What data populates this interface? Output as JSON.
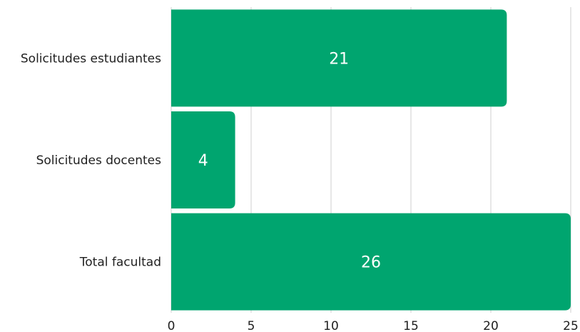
{
  "chart_data": {
    "type": "bar",
    "orientation": "horizontal",
    "categories": [
      "Solicitudes estudiantes",
      "Solicitudes docentes",
      "Total facultad"
    ],
    "values": [
      21,
      4,
      26
    ],
    "data_labels": [
      "21",
      "4",
      "26"
    ],
    "xlim": [
      0,
      25
    ],
    "x_ticks": [
      0,
      5,
      10,
      15,
      20,
      25
    ],
    "x_tick_labels": [
      "0",
      "5",
      "10",
      "15",
      "20",
      "25"
    ],
    "title": "",
    "xlabel": "",
    "ylabel": "",
    "grid": "vertical",
    "legend": "none",
    "colors": {
      "bar": "#00a56f",
      "grid": "#cfcfcf",
      "text": "#1f1f1f",
      "bar_label": "#ffffff"
    }
  }
}
